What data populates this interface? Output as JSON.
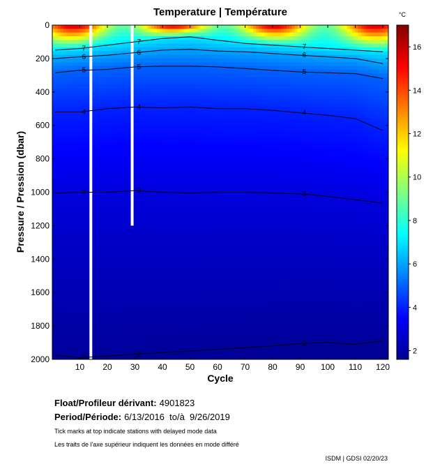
{
  "chart_data": {
    "type": "heatmap",
    "title": "Temperature | Température",
    "xlabel": "Cycle",
    "ylabel": "Pressure / Pression (dbar)",
    "xlim": [
      0,
      122
    ],
    "ylim": [
      0,
      2000
    ],
    "y_inverted": true,
    "xticks": [
      10,
      20,
      30,
      40,
      50,
      60,
      70,
      80,
      90,
      100,
      110,
      120
    ],
    "yticks": [
      0,
      200,
      400,
      600,
      800,
      1000,
      1200,
      1400,
      1600,
      1800,
      2000
    ],
    "colorbar": {
      "unit": "°C",
      "min": 1.6,
      "max": 17,
      "ticks": [
        2,
        4,
        6,
        8,
        10,
        12,
        14,
        16
      ]
    },
    "missing_profiles": [
      {
        "cycle": 14,
        "from_pressure": 0,
        "to_pressure": 2000
      },
      {
        "cycle": 29,
        "from_pressure": 0,
        "to_pressure": 1200
      }
    ],
    "isotherms": [
      {
        "label": "2",
        "cycle": [
          1,
          10,
          20,
          30,
          40,
          50,
          60,
          70,
          80,
          90,
          100,
          110,
          120
        ],
        "pressure": [
          1975,
          1990,
          1980,
          1970,
          1960,
          1950,
          1940,
          1930,
          1920,
          1905,
          1900,
          1910,
          1890
        ]
      },
      {
        "label": "3",
        "cycle": [
          1,
          10,
          20,
          30,
          40,
          50,
          60,
          70,
          80,
          90,
          100,
          110,
          120
        ],
        "pressure": [
          1005,
          1000,
          1000,
          990,
          1000,
          1005,
          1000,
          1000,
          1005,
          1010,
          1025,
          1045,
          1065
        ]
      },
      {
        "label": "4",
        "cycle": [
          1,
          10,
          20,
          30,
          40,
          50,
          60,
          70,
          80,
          90,
          100,
          110,
          120
        ],
        "pressure": [
          520,
          520,
          500,
          490,
          495,
          490,
          500,
          500,
          510,
          525,
          540,
          560,
          630
        ]
      },
      {
        "label": "5",
        "cycle": [
          1,
          10,
          20,
          30,
          40,
          50,
          60,
          70,
          80,
          90,
          100,
          110,
          120
        ],
        "pressure": [
          285,
          270,
          265,
          250,
          245,
          245,
          250,
          260,
          270,
          280,
          285,
          290,
          320
        ]
      },
      {
        "label": "6",
        "cycle": [
          1,
          10,
          20,
          30,
          40,
          50,
          60,
          70,
          80,
          90,
          100,
          110,
          120
        ],
        "pressure": [
          200,
          190,
          180,
          165,
          150,
          145,
          155,
          160,
          170,
          180,
          190,
          200,
          230
        ]
      },
      {
        "label": "7",
        "cycle": [
          1,
          10,
          20,
          30,
          40,
          50,
          60,
          70,
          80,
          90,
          100,
          110,
          120
        ],
        "pressure": [
          150,
          140,
          120,
          100,
          80,
          70,
          90,
          110,
          120,
          130,
          140,
          150,
          160
        ]
      }
    ],
    "legend": "none"
  },
  "info": {
    "float_label": "Float/Profileur dérivant:",
    "float_value": "4901823",
    "period_label": "Period/Période:",
    "period_value": "6/13/2016  to/à  9/26/2019",
    "note_en": "Tick marks at top indicate stations with delayed mode data",
    "note_fr": "Les traits de l'axe supérieur indiquent les données en mode différé",
    "credit": "ISDM | GDSI  02/20/23"
  },
  "colors": {
    "colormap": "jet",
    "contour": "#000000",
    "gap": "#ffffff"
  }
}
